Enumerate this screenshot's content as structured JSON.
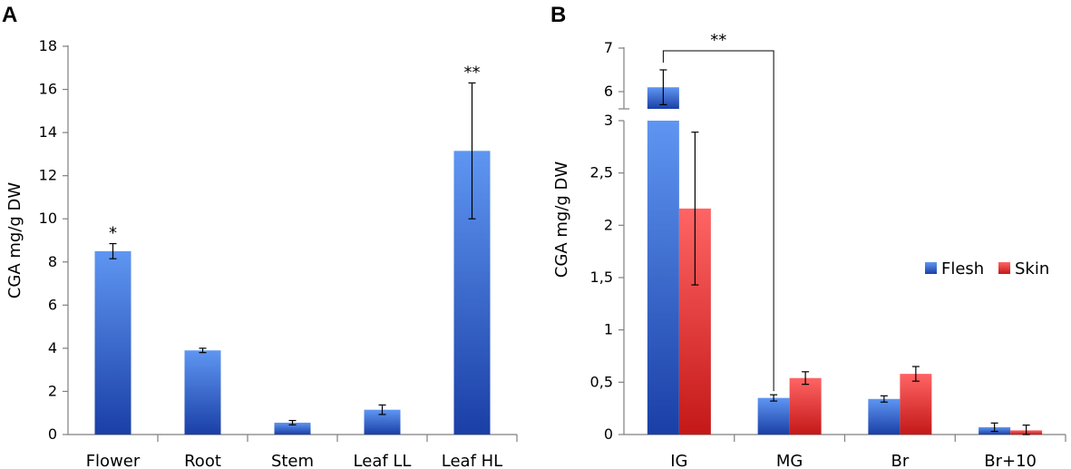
{
  "colors": {
    "flesh": "#1e46b4",
    "skin": "#e02020",
    "axis": "#7f7f7f"
  },
  "chart_data": [
    {
      "panel": "A",
      "type": "bar",
      "title": "",
      "xlabel": "",
      "ylabel": "CGA mg/g DW",
      "ylim": [
        0,
        18
      ],
      "yticks": [
        0,
        2,
        4,
        6,
        8,
        10,
        12,
        14,
        16,
        18
      ],
      "ytick_labels": [
        "0",
        "2",
        "4",
        "6",
        "8",
        "10",
        "12",
        "14",
        "16",
        "18"
      ],
      "categories": [
        "Flower",
        "Root",
        "Stem",
        "Leaf LL",
        "Leaf HL"
      ],
      "values": [
        8.5,
        3.9,
        0.55,
        1.15,
        13.15
      ],
      "errors": [
        0.35,
        0.1,
        0.1,
        0.22,
        3.15
      ],
      "annotations": [
        "*",
        "",
        "",
        "",
        "**"
      ]
    },
    {
      "panel": "B",
      "type": "bar",
      "title": "",
      "xlabel": "",
      "ylabel": "CGA mg/g DW",
      "ylim": [
        0,
        7
      ],
      "axis_break": [
        3,
        5.7
      ],
      "yticks": [
        0,
        0.5,
        1,
        1.5,
        2,
        2.5,
        3,
        6,
        7
      ],
      "ytick_labels": [
        "0",
        "0,5",
        "1",
        "1,5",
        "2",
        "2,5",
        "3",
        "6",
        "7"
      ],
      "categories": [
        "IG",
        "MG",
        "Br",
        "Br+10"
      ],
      "series": [
        {
          "name": "Flesh",
          "values": [
            6.1,
            0.35,
            0.34,
            0.07
          ],
          "errors": [
            0.4,
            0.03,
            0.03,
            0.04
          ]
        },
        {
          "name": "Skin",
          "values": [
            2.16,
            0.54,
            0.58,
            0.04
          ],
          "errors": [
            0.73,
            0.06,
            0.07,
            0.05
          ]
        }
      ],
      "comparison": {
        "from": "IG",
        "to": "MG",
        "label": "**"
      },
      "legend": "right"
    }
  ]
}
